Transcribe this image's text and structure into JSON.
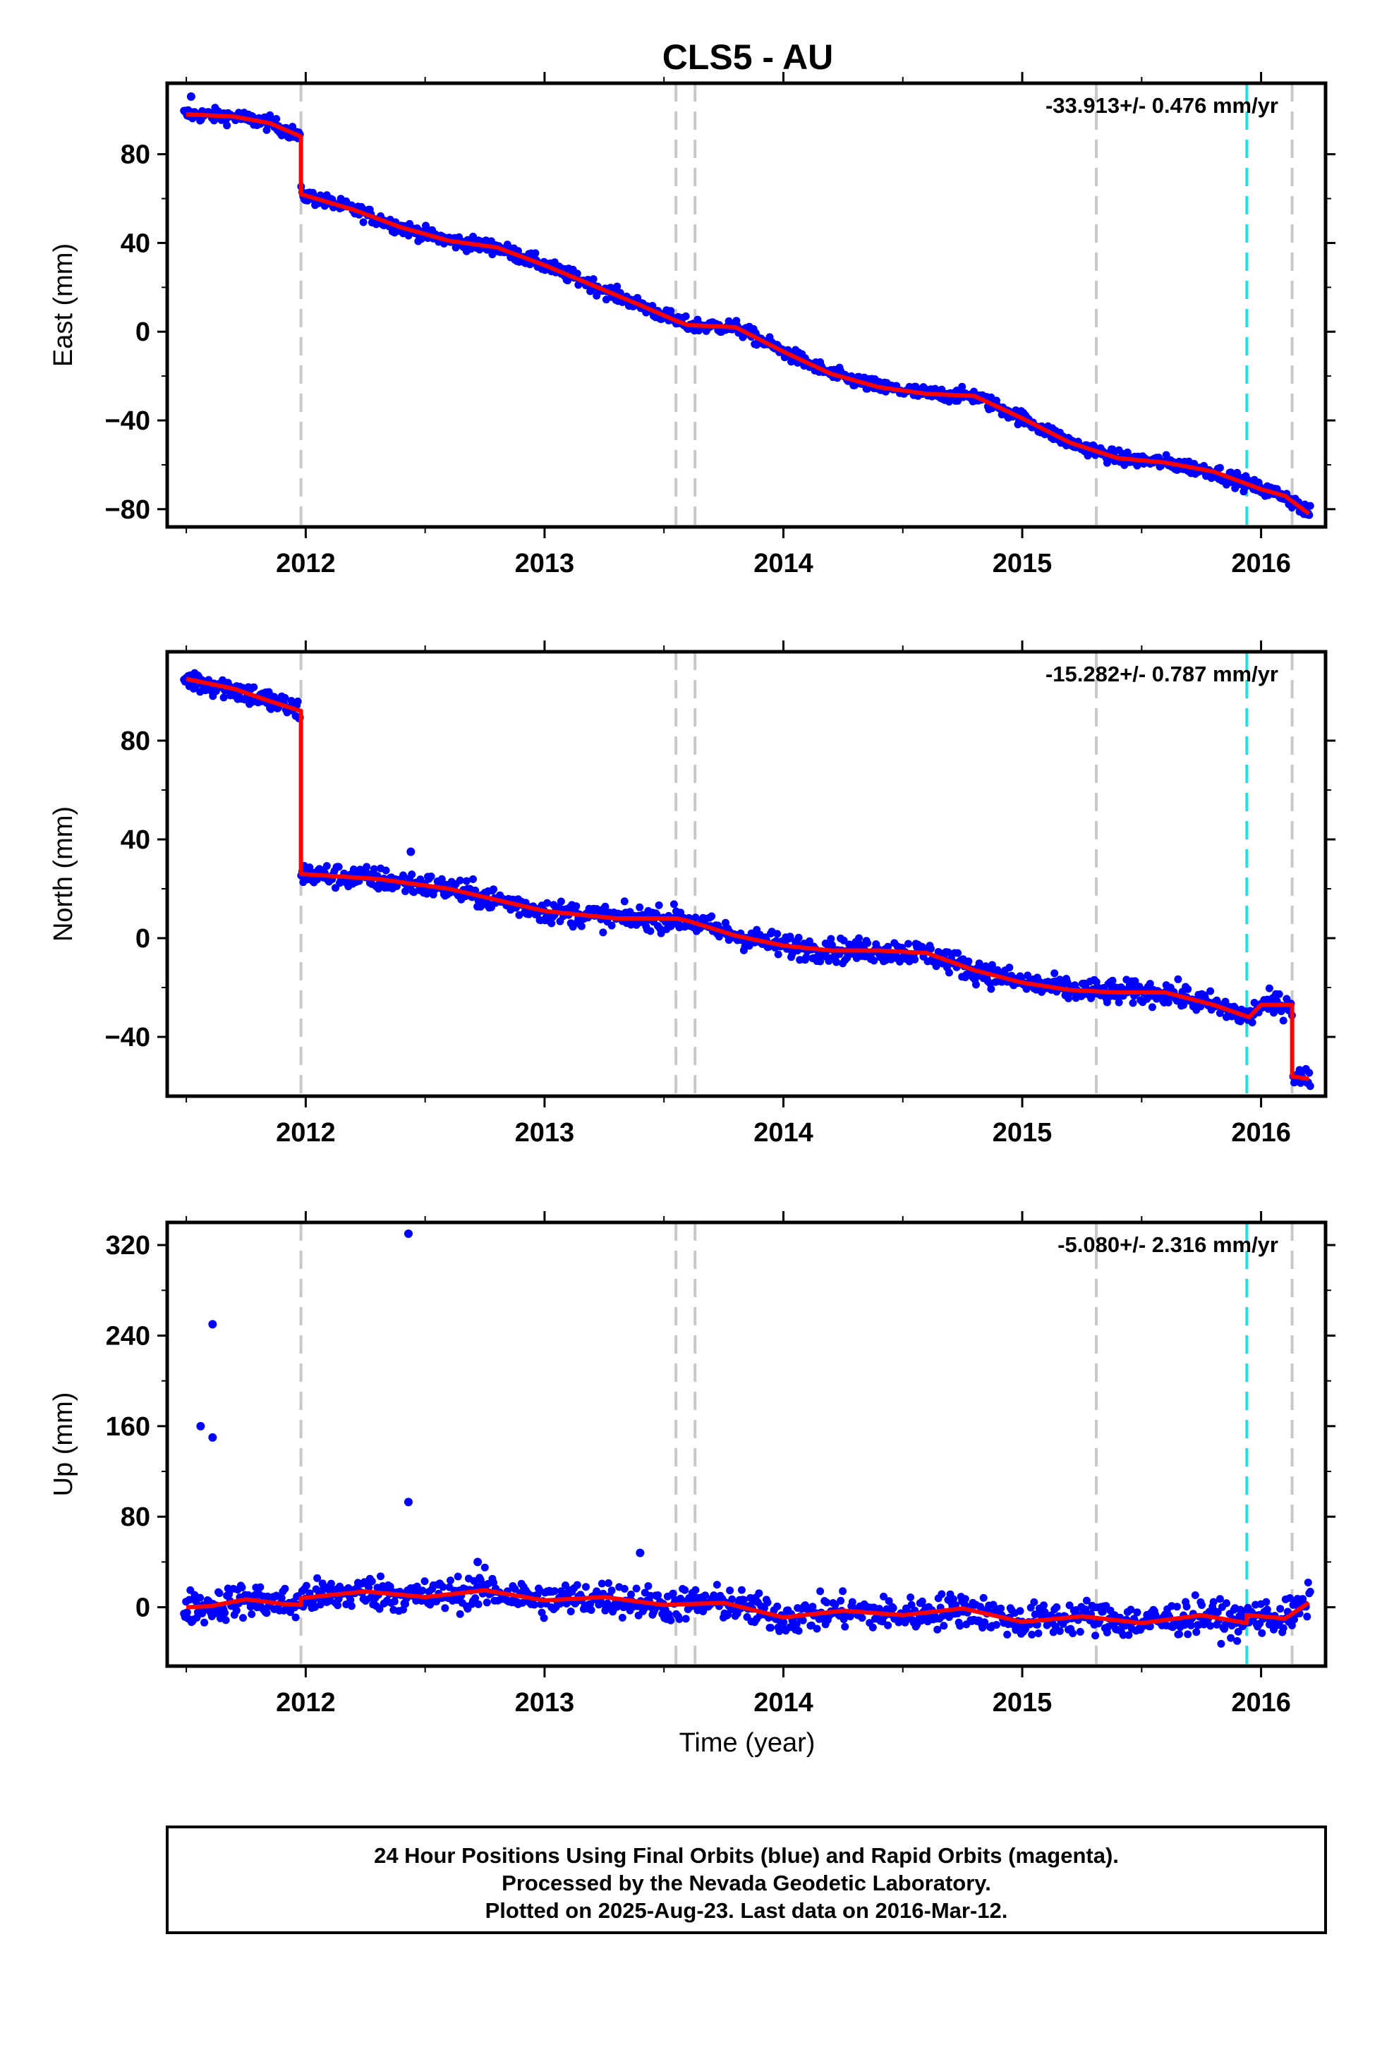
{
  "chart_data": {
    "type": "scatter",
    "title": "CLS5 - AU",
    "xlabel": "Time (year)",
    "x_ticks": [
      2012,
      2013,
      2014,
      2015,
      2016
    ],
    "xlim": [
      2011.42,
      2016.27
    ],
    "grid": false,
    "breaks_gray": [
      2011.98,
      2013.55,
      2013.63,
      2015.31,
      2016.13
    ],
    "breaks_cyan": [
      2015.94
    ],
    "colors": {
      "points": "#0000ff",
      "model": "#ff0000",
      "break_gray": "#c8c8c8",
      "break_cyan": "#22e0e0",
      "frame": "#000000"
    },
    "panels": [
      {
        "ylabel": "East (mm)",
        "rate_text": "-33.913+/- 0.476 mm/yr",
        "ylim": [
          -88,
          112
        ],
        "y_ticks": [
          80,
          40,
          0,
          -40,
          -80
        ],
        "y_tick_labels": [
          "80",
          "40",
          "0",
          "−40",
          "−80"
        ],
        "model": {
          "x": [
            2011.5,
            2011.7,
            2011.85,
            2011.98,
            2011.98,
            2012.2,
            2012.4,
            2012.6,
            2012.8,
            2013.0,
            2013.2,
            2013.4,
            2013.55,
            2013.6,
            2013.8,
            2014.0,
            2014.2,
            2014.4,
            2014.6,
            2014.8,
            2015.0,
            2015.2,
            2015.4,
            2015.6,
            2015.8,
            2016.0,
            2016.1,
            2016.2
          ],
          "y": [
            98,
            97,
            94,
            88,
            62,
            55,
            47,
            41,
            38,
            30,
            21,
            12,
            5,
            3,
            2,
            -9,
            -19,
            -25,
            -28,
            -29,
            -39,
            -50,
            -57,
            -59,
            -63,
            -71,
            -74,
            -82
          ]
        },
        "outliers": [
          {
            "x": 2011.52,
            "y": 106
          }
        ]
      },
      {
        "ylabel": "North (mm)",
        "rate_text": "-15.282+/- 0.787 mm/yr",
        "ylim": [
          -64,
          116
        ],
        "y_ticks": [
          80,
          40,
          0,
          -40
        ],
        "y_tick_labels": [
          "80",
          "40",
          "0",
          "−40"
        ],
        "model": {
          "x": [
            2011.5,
            2011.7,
            2011.85,
            2011.98,
            2011.98,
            2012.3,
            2012.6,
            2013.0,
            2013.3,
            2013.55,
            2013.6,
            2013.8,
            2014.0,
            2014.2,
            2014.4,
            2014.6,
            2014.8,
            2015.0,
            2015.2,
            2015.4,
            2015.6,
            2015.8,
            2015.95,
            2016.0,
            2016.13,
            2016.13,
            2016.2
          ],
          "y": [
            105,
            101,
            96,
            92,
            26,
            24,
            20,
            11,
            8,
            8,
            7,
            1,
            -3,
            -5,
            -5,
            -6,
            -13,
            -18,
            -21,
            -22,
            -22,
            -27,
            -32,
            -27,
            -27,
            -56,
            -57
          ]
        },
        "outliers": [
          {
            "x": 2012.44,
            "y": 35
          }
        ]
      },
      {
        "ylabel": "Up (mm)",
        "rate_text": "-5.080+/- 2.316 mm/yr",
        "ylim": [
          -52,
          340
        ],
        "y_ticks": [
          320,
          240,
          160,
          80,
          0
        ],
        "y_tick_labels": [
          "320",
          "240",
          "160",
          "80",
          "0"
        ],
        "model": {
          "x": [
            2011.5,
            2011.6,
            2011.75,
            2011.9,
            2011.98,
            2011.98,
            2012.25,
            2012.5,
            2012.75,
            2013.0,
            2013.25,
            2013.5,
            2013.75,
            2014.0,
            2014.25,
            2014.5,
            2014.75,
            2015.0,
            2015.25,
            2015.5,
            2015.75,
            2015.94,
            2015.94,
            2016.0,
            2016.1,
            2016.2
          ],
          "y": [
            0,
            1,
            7,
            3,
            2,
            8,
            14,
            9,
            15,
            6,
            9,
            2,
            4,
            -9,
            -3,
            -7,
            -1,
            -13,
            -8,
            -14,
            -7,
            -14,
            -7,
            -8,
            -10,
            4
          ]
        },
        "outliers": [
          {
            "x": 2011.56,
            "y": 160
          },
          {
            "x": 2011.61,
            "y": 250
          },
          {
            "x": 2011.61,
            "y": 150
          },
          {
            "x": 2012.43,
            "y": 330
          },
          {
            "x": 2012.43,
            "y": 93
          },
          {
            "x": 2013.4,
            "y": 48
          },
          {
            "x": 2012.72,
            "y": 40
          }
        ]
      }
    ]
  },
  "caption": {
    "line1": "24 Hour Positions Using Final Orbits (blue) and Rapid Orbits (magenta).",
    "line2": "Processed by the Nevada Geodetic Laboratory.",
    "line3": "Plotted on 2025-Aug-23. Last data on 2016-Mar-12."
  }
}
